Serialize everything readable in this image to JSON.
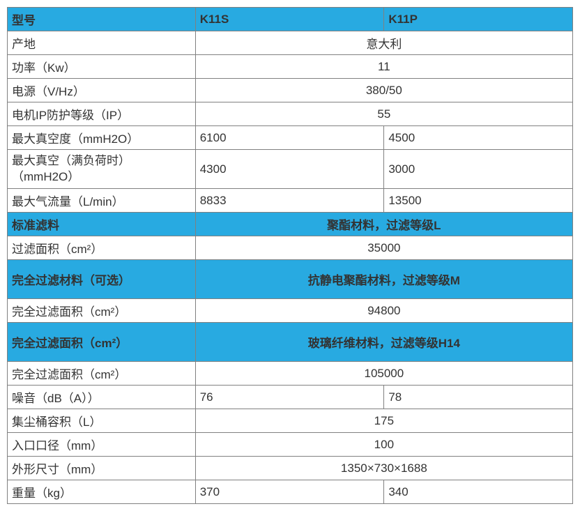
{
  "header": {
    "label": "型号",
    "col1": "K11S",
    "col2": "K11P"
  },
  "rows": [
    {
      "type": "merged",
      "label": "产地",
      "value": "意大利"
    },
    {
      "type": "merged",
      "label": "功率（Kw）",
      "value": "11"
    },
    {
      "type": "merged",
      "label": "电源（V/Hz）",
      "value": "380/50"
    },
    {
      "type": "merged",
      "label": "电机IP防护等级（IP）",
      "value": "55"
    },
    {
      "type": "split",
      "label": "最大真空度（mmH2O）",
      "v1": "6100",
      "v2": "4500"
    },
    {
      "type": "split_tall",
      "label1": "最大真空（满负荷时）",
      "label2": "（mmH2O）",
      "v1": "4300",
      "v2": "3000"
    },
    {
      "type": "split",
      "label": "最大气流量（L/min）",
      "v1": "8833",
      "v2": "13500"
    },
    {
      "type": "section",
      "label": "标准滤料",
      "value": "聚酯材料，过滤等级L"
    },
    {
      "type": "merged",
      "label": "过滤面积（cm²）",
      "value": "35000"
    },
    {
      "type": "section_tall",
      "label": "完全过滤材料（可选）",
      "value": "抗静电聚酯材料，过滤等级M"
    },
    {
      "type": "merged",
      "label": "完全过滤面积（cm²）",
      "value": "94800"
    },
    {
      "type": "section_tall",
      "label": "完全过滤面积（cm²）",
      "value": "玻璃纤维材料，过滤等级H14"
    },
    {
      "type": "merged",
      "label": "完全过滤面积（cm²）",
      "value": "105000"
    },
    {
      "type": "split",
      "label": "噪音（dB（A））",
      "v1": "76",
      "v2": "78"
    },
    {
      "type": "merged",
      "label": "集尘桶容积（L）",
      "value": "175"
    },
    {
      "type": "merged",
      "label": "入口口径（mm）",
      "value": "100"
    },
    {
      "type": "merged",
      "label": "外形尺寸（mm）",
      "value": "1350×730×1688"
    },
    {
      "type": "split",
      "label": "重量（kg）",
      "v1": "370",
      "v2": "340"
    }
  ],
  "colors": {
    "highlight": "#28aae1",
    "border": "#808080",
    "text": "#333333",
    "background": "#ffffff"
  }
}
